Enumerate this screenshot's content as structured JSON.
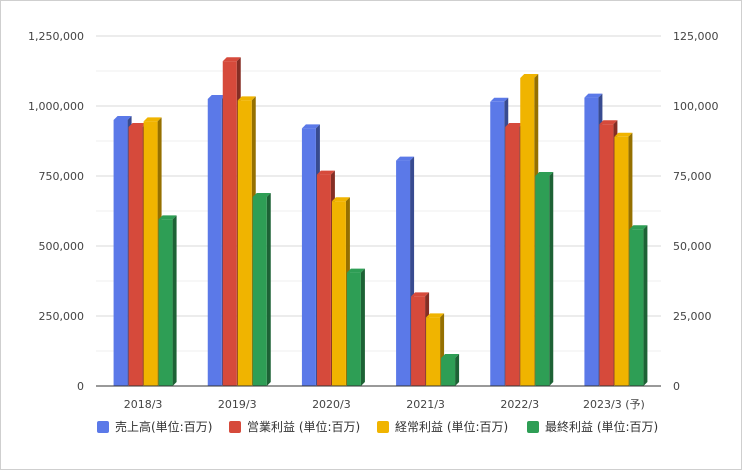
{
  "chart_data": {
    "type": "bar",
    "style": "3d",
    "categories": [
      "2018/3",
      "2019/3",
      "2020/3",
      "2021/3",
      "2022/3",
      "2023/3 (予)"
    ],
    "y_left": {
      "range": [
        0,
        1250000
      ],
      "ticks": [
        "0",
        "250,000",
        "500,000",
        "750,000",
        "1,000,000",
        "1,250,000"
      ]
    },
    "y_right": {
      "range": [
        0,
        125000
      ],
      "ticks": [
        "0",
        "25,000",
        "50,000",
        "75,000",
        "100,000",
        "125,000"
      ]
    },
    "grid": true,
    "legend_position": "bottom",
    "series": [
      {
        "name": "売上高(単位:百万)",
        "axis": "left",
        "color": "#5b79e8",
        "values": [
          950000,
          1025000,
          920000,
          805000,
          1015000,
          1030000
        ]
      },
      {
        "name": "営業利益 (単位:百万)",
        "axis": "right",
        "color": "#d64a3b",
        "values": [
          92500,
          116000,
          75500,
          32000,
          92500,
          93500
        ]
      },
      {
        "name": "経常利益 (単位:百万)",
        "axis": "right",
        "color": "#f0b400",
        "values": [
          94500,
          102000,
          66000,
          24500,
          110000,
          89000
        ]
      },
      {
        "name": "最終利益 (単位:百万)",
        "axis": "right",
        "color": "#2e9e55",
        "values": [
          59500,
          67500,
          40500,
          10000,
          75000,
          56000
        ]
      }
    ]
  }
}
